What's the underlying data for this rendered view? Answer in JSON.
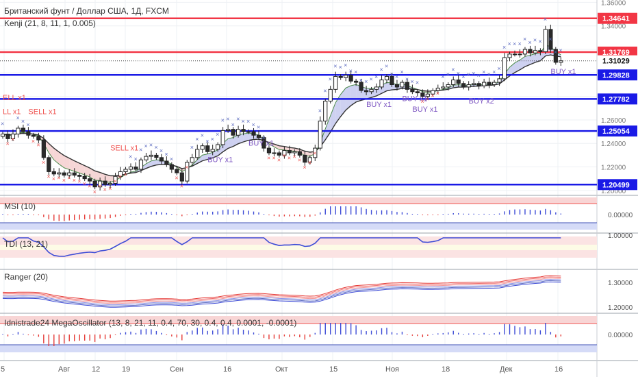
{
  "chart_data": {
    "type": "candlestick",
    "title": "Британский фунт / Доллар США, 1Д, FXCM",
    "indicator": "Kenji (21, 8, 11, 1, 0.005)",
    "x_ticks": [
      "5",
      "Авг",
      "12",
      "19",
      "Сен",
      "16",
      "Окт",
      "15",
      "Ноя",
      "18",
      "Дек",
      "16"
    ],
    "price_axis": [
      "1.36000",
      "1.34000",
      "1.32000",
      "1.30000",
      "1.28000",
      "1.26000",
      "1.24000",
      "1.22000",
      "1.20000"
    ],
    "price_range": [
      1.197,
      1.362
    ],
    "current_price": "1.31029",
    "levels": [
      {
        "label": "1.34641",
        "value": 1.34641,
        "color": "#f23645"
      },
      {
        "label": "1.31769",
        "value": 1.31769,
        "color": "#f23645"
      },
      {
        "label": "1.29828",
        "value": 1.29828,
        "color": "#1a1ae6"
      },
      {
        "label": "1.27782",
        "value": 1.27782,
        "color": "#1a1ae6"
      },
      {
        "label": "1.25054",
        "value": 1.25054,
        "color": "#1a1ae6"
      },
      {
        "label": "1.20499",
        "value": 1.20499,
        "color": "#1a1ae6"
      }
    ],
    "closes": [
      1.248,
      1.244,
      1.248,
      1.253,
      1.25,
      1.247,
      1.246,
      1.243,
      1.228,
      1.216,
      1.214,
      1.215,
      1.213,
      1.215,
      1.213,
      1.212,
      1.21,
      1.208,
      1.203,
      1.208,
      1.205,
      1.206,
      1.212,
      1.216,
      1.218,
      1.22,
      1.218,
      1.226,
      1.229,
      1.23,
      1.228,
      1.225,
      1.222,
      1.218,
      1.215,
      1.208,
      1.224,
      1.228,
      1.235,
      1.238,
      1.233,
      1.235,
      1.239,
      1.251,
      1.252,
      1.247,
      1.252,
      1.25,
      1.25,
      1.247,
      1.245,
      1.236,
      1.232,
      1.232,
      1.23,
      1.234,
      1.232,
      1.233,
      1.23,
      1.224,
      1.228,
      1.236,
      1.259,
      1.276,
      1.286,
      1.297,
      1.296,
      1.298,
      1.293,
      1.292,
      1.285,
      1.284,
      1.286,
      1.288,
      1.294,
      1.297,
      1.29,
      1.288,
      1.292,
      1.286,
      1.284,
      1.283,
      1.28,
      1.282,
      1.285,
      1.287,
      1.288,
      1.29,
      1.294,
      1.291,
      1.288,
      1.29,
      1.291,
      1.289,
      1.292,
      1.29,
      1.292,
      1.295,
      1.313,
      1.316,
      1.316,
      1.316,
      1.32,
      1.317,
      1.319,
      1.318,
      1.337,
      1.32,
      1.309,
      1.3103
    ],
    "signal_labels": [
      {
        "text": "ELL x1",
        "bar": 0,
        "price": 1.277,
        "color": "#ef5350"
      },
      {
        "text": "LL x1",
        "bar": 0,
        "price": 1.265,
        "color": "#ef5350"
      },
      {
        "text": "SELL x1",
        "bar": 5,
        "price": 1.265,
        "color": "#ef5350"
      },
      {
        "text": "SELL x1",
        "bar": 21,
        "price": 1.234,
        "color": "#ef5350"
      },
      {
        "text": "BUY x1",
        "bar": 40,
        "price": 1.224,
        "color": "#7e57c2"
      },
      {
        "text": "BUY x1",
        "bar": 48,
        "price": 1.238,
        "color": "#7e57c2"
      },
      {
        "text": "BUY x1",
        "bar": 71,
        "price": 1.271,
        "color": "#7e57c2"
      },
      {
        "text": "BUY x1",
        "bar": 78,
        "price": 1.276,
        "color": "#7e57c2"
      },
      {
        "text": "BUY x1",
        "bar": 80,
        "price": 1.267,
        "color": "#7e57c2"
      },
      {
        "text": "BUY x2",
        "bar": 91,
        "price": 1.274,
        "color": "#7e57c2"
      },
      {
        "text": "BUY x1",
        "bar": 107,
        "price": 1.299,
        "color": "#7e57c2"
      }
    ],
    "panels": [
      {
        "label": "MSI (10)",
        "axis": [
          "0.00000"
        ]
      },
      {
        "label": "TDI (13, 21)",
        "axis": [
          "1.00000"
        ]
      },
      {
        "label": "Ranger (20)",
        "axis": [
          "1.30000",
          "1.20000"
        ]
      },
      {
        "label": "Idnistrade24 MegaOscillator (13, 8, 21, 11, 0.4, 70, 30, 0.4, 0.4, 0.0001, -0.0001)",
        "axis": [
          "0.00000"
        ]
      }
    ]
  },
  "colors": {
    "bull": "#2a2a2a",
    "bear_fill": "#ffffff",
    "cloud_bull": "#c5c9ef",
    "cloud_bear": "#f5cfcf",
    "marker_bull": "#5c6bc0",
    "marker_bear": "#ef5350"
  }
}
